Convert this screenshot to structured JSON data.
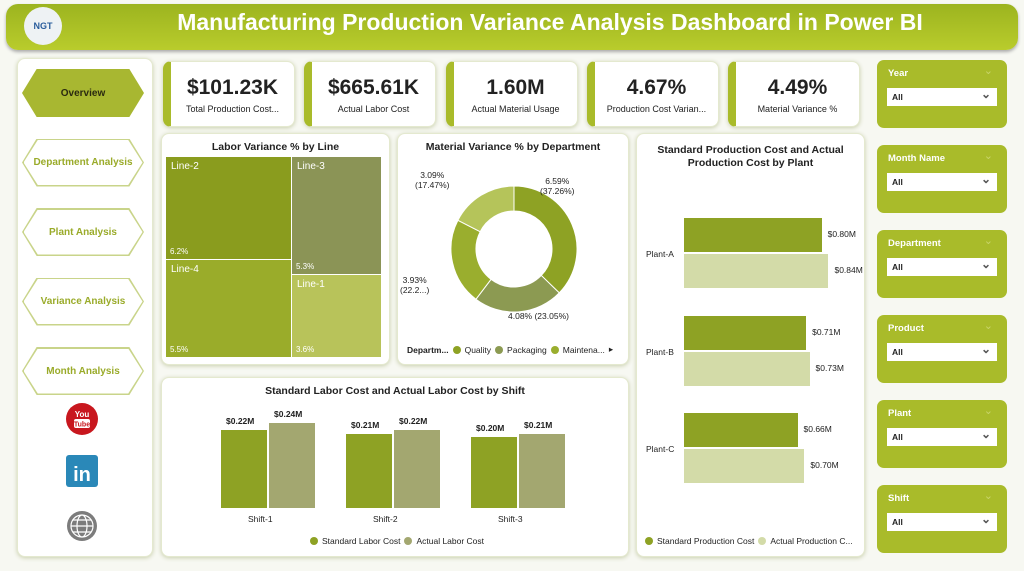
{
  "header": {
    "title": "Manufacturing Production Variance Analysis Dashboard in Power BI",
    "logo_text": "NGT"
  },
  "nav": {
    "items": [
      {
        "label": "Overview",
        "active": true
      },
      {
        "label": "Department Analysis"
      },
      {
        "label": "Plant Analysis"
      },
      {
        "label": "Variance Analysis"
      },
      {
        "label": "Month Analysis"
      }
    ],
    "social": [
      "youtube-icon",
      "linkedin-icon",
      "globe-icon"
    ]
  },
  "kpis": [
    {
      "value": "$101.23K",
      "label": "Total Production Cost..."
    },
    {
      "value": "$665.61K",
      "label": "Actual Labor Cost"
    },
    {
      "value": "1.60M",
      "label": "Actual Material Usage"
    },
    {
      "value": "4.67%",
      "label": "Production Cost Varian..."
    },
    {
      "value": "4.49%",
      "label": "Material Variance %"
    }
  ],
  "slicers": [
    {
      "label": "Year",
      "value": "All"
    },
    {
      "label": "Month Name",
      "value": "All"
    },
    {
      "label": "Department",
      "value": "All"
    },
    {
      "label": "Product",
      "value": "All"
    },
    {
      "label": "Plant",
      "value": "All"
    },
    {
      "label": "Shift",
      "value": "All"
    }
  ],
  "colors": {
    "accent": "#a9bb2a",
    "primary_series": "#8ea224",
    "secondary_series": "#a3a770"
  },
  "chart_data": [
    {
      "type": "treemap",
      "title": "Labor Variance % by Line",
      "categories": [
        "Line-2",
        "Line-3",
        "Line-4",
        "Line-1"
      ],
      "values": [
        6.2,
        5.3,
        5.5,
        3.6
      ],
      "labels": [
        "6.2%",
        "5.3%",
        "5.5%",
        "3.6%"
      ]
    },
    {
      "type": "pie",
      "title": "Material Variance % by Department",
      "legend_title": "Departm...",
      "legend": [
        "Quality",
        "Packaging",
        "Maintena..."
      ],
      "values": [
        6.59,
        4.08,
        3.93,
        3.09
      ],
      "labels": [
        "6.59%\n(37.26%)",
        "4.08% (23.05%)",
        "3.93%\n(22.2...)",
        "3.09%\n(17.47%)"
      ],
      "colors": [
        "#8ea224",
        "#8c9a52",
        "#9aae2e",
        "#b5c45a"
      ]
    },
    {
      "type": "bar",
      "title": "Standard Labor Cost and Actual Labor Cost by Shift",
      "categories": [
        "Shift-1",
        "Shift-2",
        "Shift-3"
      ],
      "series": [
        {
          "name": "Standard Labor Cost",
          "values": [
            0.22,
            0.21,
            0.2
          ],
          "labels": [
            "$0.22M",
            "$0.21M",
            "$0.20M"
          ]
        },
        {
          "name": "Actual Labor Cost",
          "values": [
            0.24,
            0.22,
            0.21
          ],
          "labels": [
            "$0.24M",
            "$0.22M",
            "$0.21M"
          ]
        }
      ]
    },
    {
      "type": "bar",
      "orientation": "horizontal",
      "title": "Standard Production Cost and Actual Production Cost by Plant",
      "categories": [
        "Plant-A",
        "Plant-B",
        "Plant-C"
      ],
      "series": [
        {
          "name": "Standard Production Cost",
          "values": [
            0.8,
            0.71,
            0.66
          ],
          "labels": [
            "$0.80M",
            "$0.71M",
            "$0.66M"
          ]
        },
        {
          "name": "Actual Production C...",
          "values": [
            0.84,
            0.73,
            0.7
          ],
          "labels": [
            "$0.84M",
            "$0.73M",
            "$0.70M"
          ]
        }
      ]
    }
  ]
}
